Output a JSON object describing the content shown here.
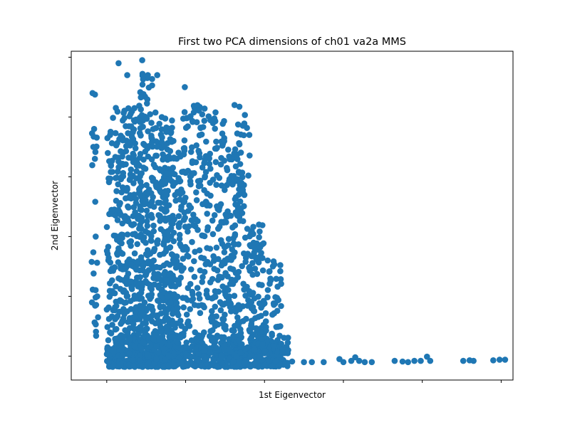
{
  "chart_data": {
    "type": "scatter",
    "title": "First two PCA dimensions of ch01 va2a MMS",
    "xlabel": "1st Eigenvector",
    "ylabel": "2nd Eigenvector",
    "xlim": [
      -0.45,
      5.15
    ],
    "ylim": [
      -0.4,
      5.1
    ],
    "xticks": [
      0,
      1,
      2,
      3,
      4,
      5
    ],
    "yticks": [
      0,
      1,
      2,
      3,
      4,
      5
    ],
    "tick_labels_visible": false,
    "grid": false,
    "legend": "none",
    "marker_color": "#1f77b4",
    "series": [
      {
        "clusters": [
          {
            "x": [
              -0.2,
              -0.12
            ],
            "y": [
              -0.12,
              4.4
            ],
            "density": 22
          },
          {
            "x": [
              0.0,
              0.1
            ],
            "y": [
              -0.18,
              4.0
            ],
            "density": 60
          },
          {
            "x": [
              0.1,
              0.45
            ],
            "y": [
              -0.18,
              4.2
            ],
            "density": 360
          },
          {
            "x": [
              0.42,
              0.58
            ],
            "y": [
              -0.18,
              4.9
            ],
            "density": 160
          },
          {
            "x": [
              0.58,
              0.72
            ],
            "y": [
              -0.18,
              4.1
            ],
            "density": 130
          },
          {
            "x": [
              0.72,
              0.85
            ],
            "y": [
              -0.18,
              4.0
            ],
            "density": 110
          },
          {
            "x": [
              0.72,
              0.95
            ],
            "y": [
              -0.18,
              3.6
            ],
            "density": 160
          },
          {
            "x": [
              0.95,
              1.25
            ],
            "y": [
              -0.18,
              4.2
            ],
            "density": 180
          },
          {
            "x": [
              1.25,
              1.5
            ],
            "y": [
              -0.18,
              4.1
            ],
            "density": 140
          },
          {
            "x": [
              1.5,
              1.7
            ],
            "y": [
              -0.18,
              3.5
            ],
            "density": 130
          },
          {
            "x": [
              1.65,
              1.82
            ],
            "y": [
              -0.18,
              4.2
            ],
            "density": 80
          },
          {
            "x": [
              1.8,
              2.0
            ],
            "y": [
              -0.18,
              2.2
            ],
            "density": 110
          },
          {
            "x": [
              2.0,
              2.22
            ],
            "y": [
              -0.18,
              1.6
            ],
            "density": 60
          },
          {
            "x": [
              0.0,
              2.3
            ],
            "y": [
              -0.18,
              0.35
            ],
            "density": 500
          }
        ],
        "outliers": [
          {
            "x": -0.18,
            "y": 4.4
          },
          {
            "x": -0.16,
            "y": 3.8
          },
          {
            "x": -0.17,
            "y": 3.5
          },
          {
            "x": -0.15,
            "y": 3.3
          },
          {
            "x": -0.14,
            "y": 2.0
          },
          {
            "x": -0.12,
            "y": 1.0
          },
          {
            "x": -0.11,
            "y": 0.65
          },
          {
            "x": 0.15,
            "y": 4.9
          },
          {
            "x": 0.26,
            "y": 4.7
          },
          {
            "x": 0.45,
            "y": 4.95
          },
          {
            "x": 0.64,
            "y": 4.7
          },
          {
            "x": 0.99,
            "y": 4.5
          },
          {
            "x": 1.62,
            "y": 4.2
          },
          {
            "x": 1.93,
            "y": 2.2
          },
          {
            "x": 2.04,
            "y": 1.6
          },
          {
            "x": 2.2,
            "y": 0.5
          },
          {
            "x": 2.3,
            "y": 0.1
          },
          {
            "x": 2.35,
            "y": -0.09
          },
          {
            "x": 2.5,
            "y": -0.1
          },
          {
            "x": 2.6,
            "y": -0.1
          },
          {
            "x": 2.75,
            "y": -0.1
          },
          {
            "x": 2.95,
            "y": -0.05
          },
          {
            "x": 3.0,
            "y": -0.1
          },
          {
            "x": 3.1,
            "y": -0.08
          },
          {
            "x": 3.15,
            "y": -0.02
          },
          {
            "x": 3.2,
            "y": -0.08
          },
          {
            "x": 3.27,
            "y": -0.1
          },
          {
            "x": 3.36,
            "y": -0.1
          },
          {
            "x": 3.65,
            "y": -0.08
          },
          {
            "x": 3.75,
            "y": -0.09
          },
          {
            "x": 3.82,
            "y": -0.1
          },
          {
            "x": 3.9,
            "y": -0.08
          },
          {
            "x": 3.98,
            "y": -0.08
          },
          {
            "x": 4.06,
            "y": -0.01
          },
          {
            "x": 4.1,
            "y": -0.08
          },
          {
            "x": 4.52,
            "y": -0.08
          },
          {
            "x": 4.6,
            "y": -0.07
          },
          {
            "x": 4.65,
            "y": -0.08
          },
          {
            "x": 4.9,
            "y": -0.07
          },
          {
            "x": 4.98,
            "y": -0.06
          },
          {
            "x": 5.05,
            "y": -0.06
          },
          {
            "x": 5.2,
            "y": -0.06
          },
          {
            "x": 5.28,
            "y": -0.06
          }
        ]
      }
    ]
  }
}
